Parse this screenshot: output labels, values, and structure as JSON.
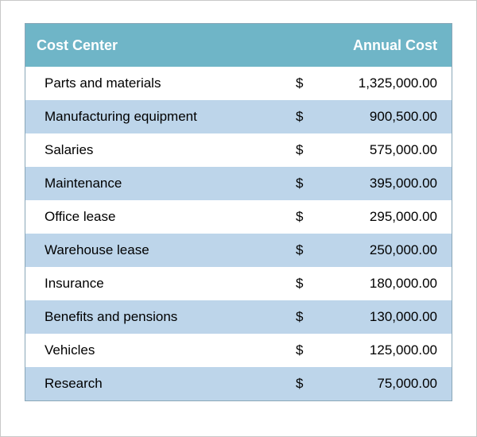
{
  "table": {
    "header_bg": "#6fb5c7",
    "header_text_color": "#ffffff",
    "header_fontsize": 18,
    "row_odd_bg": "#ffffff",
    "row_even_bg": "#bdd5ea",
    "currency_symbol": "$",
    "columns": {
      "cost_center": "Cost Center",
      "annual_cost": "Annual Cost"
    },
    "rows": [
      {
        "name": "Parts and materials",
        "value": "1,325,000.00"
      },
      {
        "name": "Manufacturing equipment",
        "value": "900,500.00"
      },
      {
        "name": "Salaries",
        "value": "575,000.00"
      },
      {
        "name": "Maintenance",
        "value": "395,000.00"
      },
      {
        "name": "Office lease",
        "value": "295,000.00"
      },
      {
        "name": "Warehouse lease",
        "value": "250,000.00"
      },
      {
        "name": "Insurance",
        "value": "180,000.00"
      },
      {
        "name": "Benefits and pensions",
        "value": "130,000.00"
      },
      {
        "name": "Vehicles",
        "value": "125,000.00"
      },
      {
        "name": "Research",
        "value": "75,000.00"
      }
    ]
  }
}
